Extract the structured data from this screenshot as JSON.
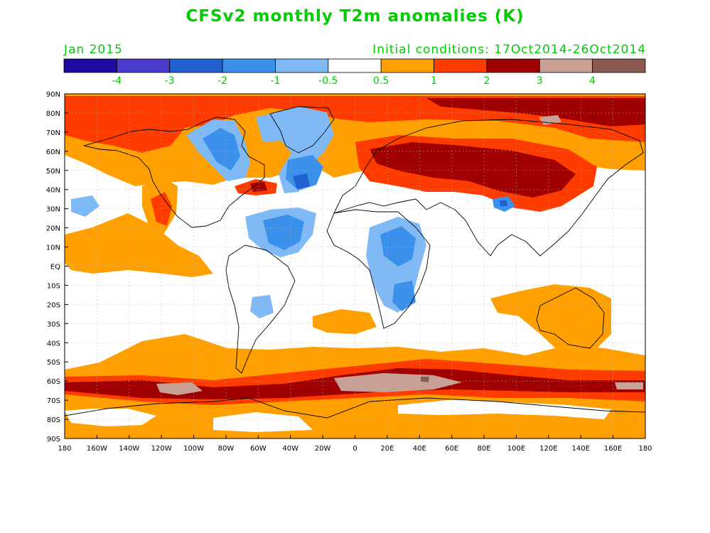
{
  "title": "CFSv2 monthly T2m anomalies (K)",
  "valid_month": "Jan 2015",
  "initial_conditions": "Initial conditions: 17Oct2014-26Oct2014",
  "colorbar": {
    "colors": [
      "#1d0aa0",
      "#4a3acd",
      "#2060d0",
      "#3a90ea",
      "#7fbaf6",
      "#ffffff",
      "#ffa000",
      "#ff3c00",
      "#a00000",
      "#c8a096",
      "#8c5a50"
    ],
    "labels": [
      "-4",
      "-3",
      "-2",
      "-1",
      "-0.5",
      "0.5",
      "1",
      "2",
      "3",
      "4"
    ]
  },
  "axes": {
    "lat_labels": [
      "90N",
      "80N",
      "70N",
      "60N",
      "50N",
      "40N",
      "30N",
      "20N",
      "10N",
      "EQ",
      "10S",
      "20S",
      "30S",
      "40S",
      "50S",
      "60S",
      "70S",
      "80S",
      "90S"
    ],
    "lon_labels": [
      "180",
      "160W",
      "140W",
      "120W",
      "100W",
      "80W",
      "60W",
      "40W",
      "20W",
      "0",
      "20E",
      "40E",
      "60E",
      "80E",
      "100E",
      "120E",
      "140E",
      "160E",
      "180"
    ],
    "label_color": "#000000"
  },
  "colors": {
    "title": "#00cc00",
    "label_green": "#00cc00",
    "coast": "#000000",
    "grid": "#b4b4b4"
  }
}
